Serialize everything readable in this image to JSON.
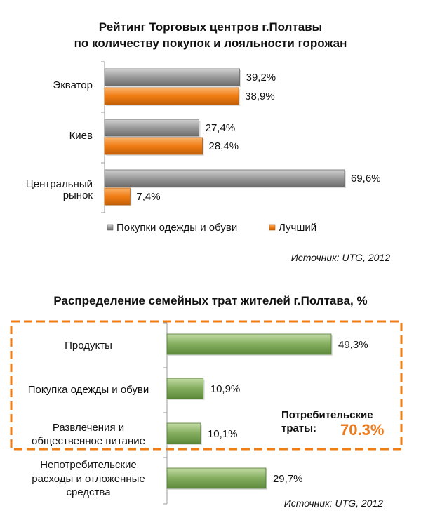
{
  "colors": {
    "gray": "#8c8c8c",
    "orange": "#f07d14",
    "green": "#7fa85a",
    "frame": "#f07d14",
    "highlight": "#ef7a1a"
  },
  "chart_data": [
    {
      "type": "bar",
      "orientation": "horizontal",
      "title_line1": "Рейтинг Торговых центров г.Полтавы",
      "title_line2": "по количеству покупок и лояльности горожан",
      "categories": [
        "Экватор",
        "Киев",
        "Центральный рынок"
      ],
      "category_lines": [
        [
          "Экватор"
        ],
        [
          "Киев"
        ],
        [
          "Центральный",
          "рынок"
        ]
      ],
      "series": [
        {
          "name": "Покупки одежды и обуви",
          "values": [
            39.2,
            27.4,
            69.6
          ],
          "labels": [
            "39,2%",
            "27,4%",
            "69,6%"
          ]
        },
        {
          "name": "Лучший",
          "values": [
            38.9,
            28.4,
            7.4
          ],
          "labels": [
            "38,9%",
            "28,4%",
            "7,4%"
          ]
        }
      ],
      "xlim": [
        0,
        70
      ],
      "legend_position": "bottom",
      "source": "Источник: UTG, 2012"
    },
    {
      "type": "bar",
      "orientation": "horizontal",
      "title": "Распределение семейных трат жителей г.Полтава, %",
      "categories": [
        "Продукты",
        "Покупка одежды и обуви",
        "Развлечения и общественное питание",
        "Непотребительские расходы и отложенные средства"
      ],
      "category_lines": [
        [
          "Продукты"
        ],
        [
          "Покупка одежды и обуви"
        ],
        [
          "Развлечения и",
          "общественное питание"
        ],
        [
          "Непотребительские",
          "расходы и отложенные",
          "средства"
        ]
      ],
      "values": [
        49.3,
        10.9,
        10.1,
        29.7
      ],
      "labels": [
        "49,3%",
        "10,9%",
        "10,1%",
        "29,7%"
      ],
      "xlim": [
        0,
        50
      ],
      "annotation": {
        "line1": "Потребительские",
        "line2": "траты:",
        "value": "70.3%"
      },
      "source": "Источник: UTG, 2012"
    }
  ]
}
